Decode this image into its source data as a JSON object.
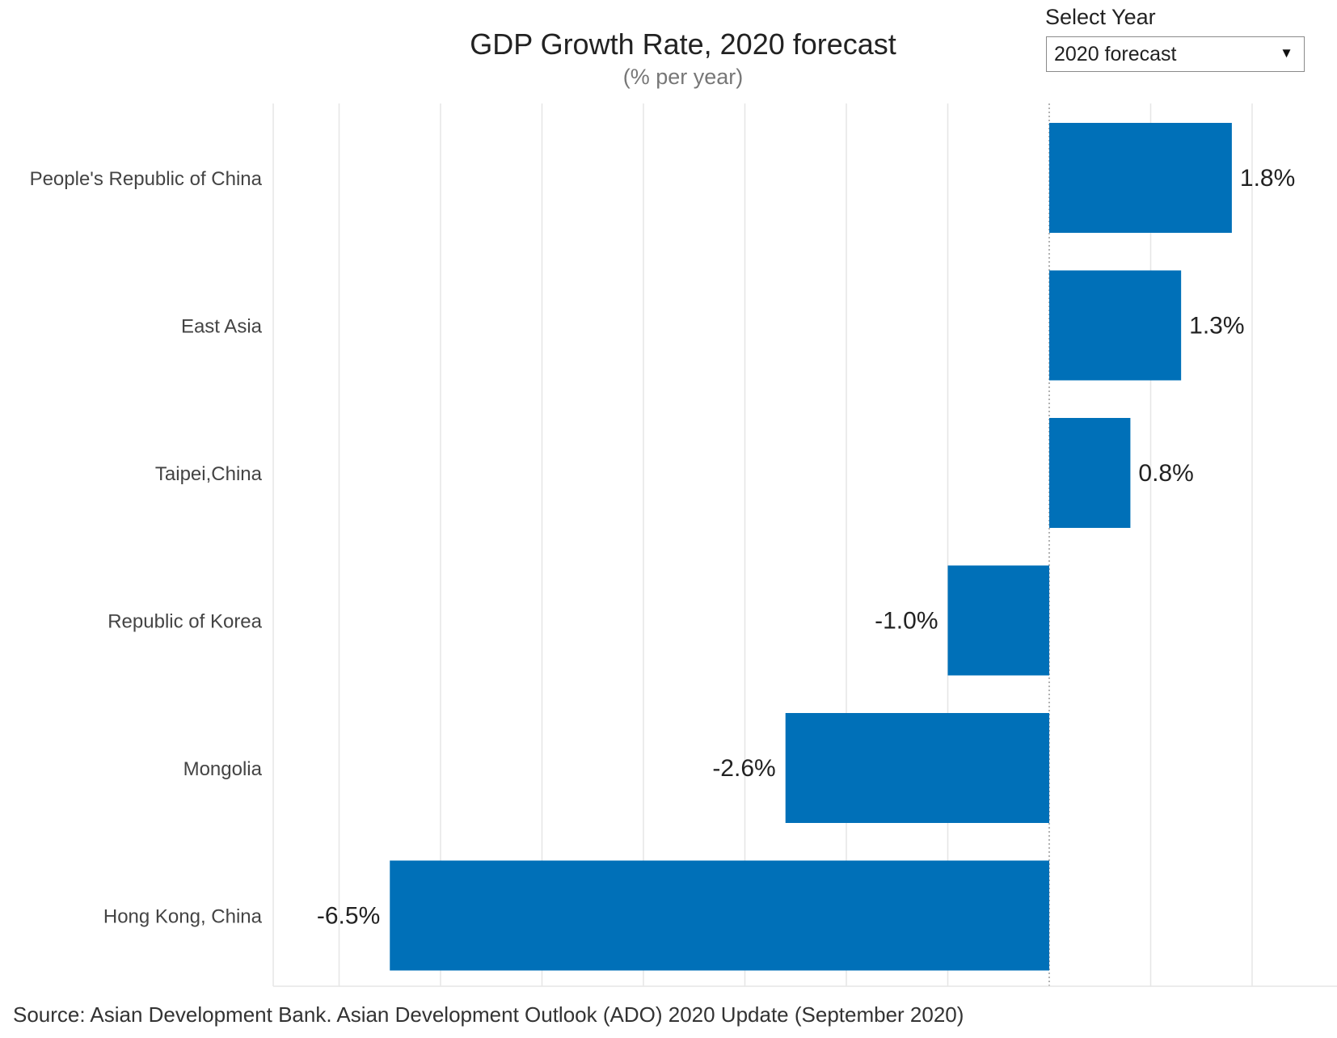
{
  "controls": {
    "year_label": "Select Year",
    "year_selected": "2020 forecast",
    "caret_icon": "triangle-down"
  },
  "source": "Source: Asian Development Bank. Asian Development Outlook (ADO) 2020 Update (September 2020)",
  "chart_data": {
    "type": "bar",
    "orientation": "horizontal",
    "title": "GDP Growth Rate, 2020 forecast",
    "subtitle": "(% per year)",
    "unit": "%",
    "categories": [
      "People's Republic of China",
      "East Asia",
      "Taipei,China",
      "Republic of Korea",
      "Mongolia",
      "Hong Kong, China"
    ],
    "values": [
      1.8,
      1.3,
      0.8,
      -1.0,
      -2.6,
      -6.5
    ],
    "value_labels": [
      "1.8%",
      "1.3%",
      "0.8%",
      "-1.0%",
      "-2.6%",
      "-6.5%"
    ],
    "xlim": [
      -7,
      2.5
    ],
    "grid": true,
    "bar_color": "#0070B8",
    "zero_line_style": "dotted"
  }
}
